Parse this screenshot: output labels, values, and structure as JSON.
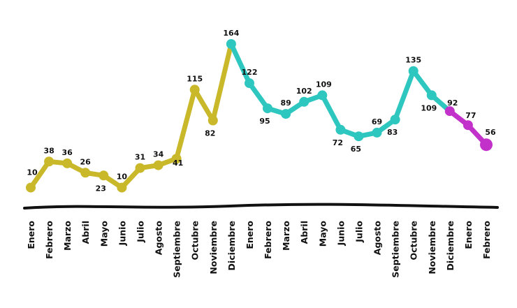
{
  "chart_data": {
    "type": "line",
    "categories": [
      "Enero",
      "Febrero",
      "Marzo",
      "Abril",
      "Mayo",
      "Junio",
      "Julio",
      "Agosto",
      "Septiembre",
      "Octubre",
      "Noviembre",
      "Diciembre",
      "Enero",
      "Febrero",
      "Marzo",
      "Abril",
      "Mayo",
      "Junio",
      "Julio",
      "Agosto",
      "Septiembre",
      "Octubre",
      "Noviembre",
      "Diciembre",
      "Enero",
      "Febrero"
    ],
    "values": [
      10,
      38,
      36,
      26,
      23,
      10,
      31,
      34,
      41,
      115,
      82,
      164,
      122,
      95,
      89,
      102,
      109,
      72,
      65,
      69,
      83,
      135,
      109,
      92,
      77,
      56
    ],
    "labels": [
      "10",
      "38",
      "36",
      "26",
      "23",
      "10",
      "31",
      "34",
      "41",
      "115",
      "82",
      "164",
      "122",
      "95",
      "89",
      "102",
      "109",
      "72",
      "65",
      "69",
      "83",
      "135",
      "109",
      "92",
      "77",
      "56"
    ],
    "segments": [
      {
        "start": 0,
        "end": 11,
        "color": "#c9b829"
      },
      {
        "start": 11,
        "end": 23,
        "color": "#2ec7c0"
      },
      {
        "start": 23,
        "end": 25,
        "color": "#c231c9"
      }
    ],
    "ylim": [
      0,
      170
    ],
    "grid": false,
    "legend": "none"
  }
}
